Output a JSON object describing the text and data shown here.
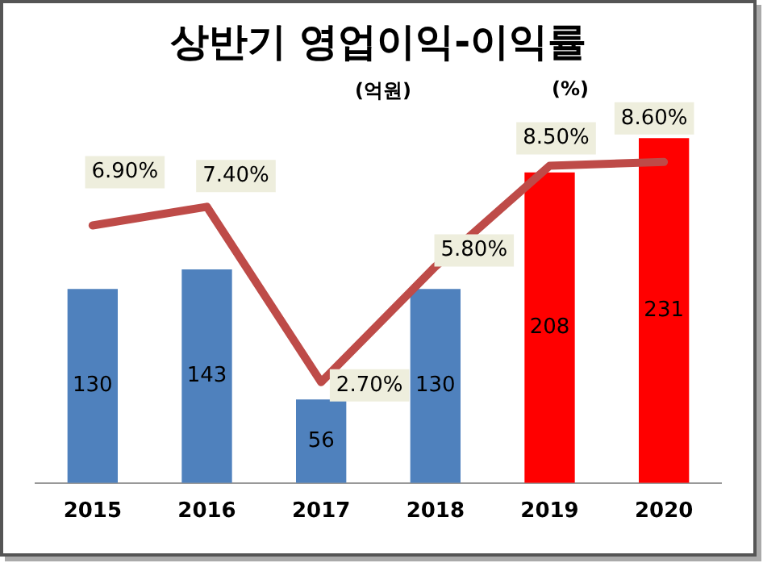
{
  "chart_data": {
    "type": "bar",
    "title": "상반기 영업이익-이익률",
    "annotations": [
      "(억원)",
      "(%)"
    ],
    "categories": [
      "2015",
      "2016",
      "2017",
      "2018",
      "2019",
      "2020"
    ],
    "series": [
      {
        "colors": [
          "#4f81bd",
          "#4f81bd",
          "#4f81bd",
          "#4f81bd",
          "#ff0000",
          "#ff0000"
        ],
        "values": [
          130,
          143,
          56,
          130,
          208,
          231
        ],
        "value_labels": [
          "130",
          "143",
          "56",
          "130",
          "208",
          "231"
        ]
      },
      {
        "type": "line",
        "axis": "y2",
        "color": "#be4b48",
        "values": [
          6.9,
          7.4,
          2.7,
          5.8,
          8.5,
          8.6
        ],
        "value_labels": [
          "6.90%",
          "7.40%",
          "2.70%",
          "5.80%",
          "8.50%",
          "8.60%"
        ]
      }
    ],
    "grid": false,
    "legend": false,
    "tick_labels": "x",
    "marker": "none"
  }
}
